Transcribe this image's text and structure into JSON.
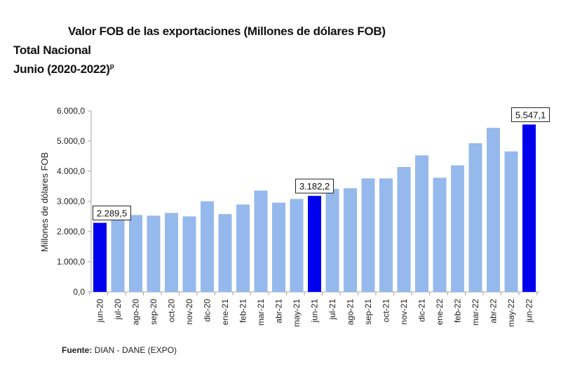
{
  "header": {
    "title": "Valor FOB de las exportaciones (Millones de dólares FOB)",
    "subtitle": "Total Nacional",
    "period": "Junio (2020-2022)",
    "period_superscript": "p"
  },
  "footer": {
    "source_label": "Fuente:",
    "source_text": " DIAN  - DANE (EXPO)"
  },
  "colors": {
    "highlight": "#0000ee",
    "normal": "#95b9ec",
    "axis": "#a6a6a6"
  },
  "chart_data": {
    "type": "bar",
    "title": "Valor FOB de las exportaciones (Millones de dólares FOB)",
    "xlabel": "",
    "ylabel": "Millones de dólares FOB",
    "ylim": [
      0,
      6000
    ],
    "yticks": [
      0,
      1000,
      2000,
      3000,
      4000,
      5000,
      6000
    ],
    "ytick_labels": [
      "0,0",
      "1.000,0",
      "2.000,0",
      "3.000,0",
      "4.000,0",
      "5.000,0",
      "6.000,0"
    ],
    "grid": false,
    "legend": "none",
    "categories": [
      "jun-20",
      "jul-20",
      "ago-20",
      "sep-20",
      "oct-20",
      "nov-20",
      "dic-20",
      "ene-21",
      "feb-21",
      "mar-21",
      "abr-21",
      "may-21",
      "jun-21",
      "jul-21",
      "ago-21",
      "sep-21",
      "oct-21",
      "nov-21",
      "dic-21",
      "ene-22",
      "feb-22",
      "mar-22",
      "abr-22",
      "may-22",
      "jun-22"
    ],
    "values": [
      2289.5,
      2420,
      2548,
      2525,
      2618,
      2502,
      3004,
      2579,
      2896,
      3359,
      2958,
      3081,
      3182.2,
      3413,
      3436,
      3761,
      3761,
      4139,
      4525,
      3784,
      4193,
      4927,
      5436,
      4656,
      5547.1
    ],
    "highlighted": [
      "jun-20",
      "jun-21",
      "jun-22"
    ],
    "data_labels": [
      {
        "category": "jun-20",
        "text": "2.289,5"
      },
      {
        "category": "jun-21",
        "text": "3.182,2"
      },
      {
        "category": "jun-22",
        "text": "5.547,1"
      }
    ]
  }
}
